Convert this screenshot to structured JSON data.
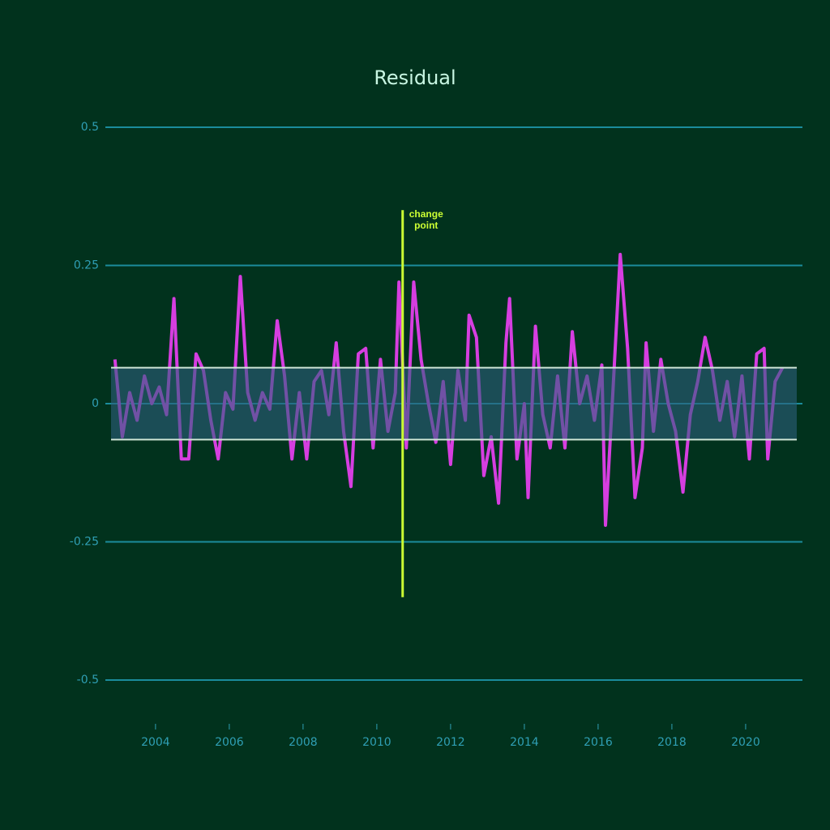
{
  "chart_data": {
    "type": "line",
    "title": "Residual",
    "x": [
      2002.9,
      2003.1,
      2003.3,
      2003.5,
      2003.7,
      2003.9,
      2004.1,
      2004.3,
      2004.5,
      2004.7,
      2004.9,
      2005.1,
      2005.3,
      2005.5,
      2005.7,
      2005.9,
      2006.1,
      2006.3,
      2006.5,
      2006.7,
      2006.9,
      2007.1,
      2007.3,
      2007.5,
      2007.7,
      2007.9,
      2008.1,
      2008.3,
      2008.5,
      2008.7,
      2008.9,
      2009.1,
      2009.3,
      2009.5,
      2009.7,
      2009.9,
      2010.1,
      2010.3,
      2010.5,
      2010.6,
      2010.8,
      2011.0,
      2011.2,
      2011.4,
      2011.6,
      2011.8,
      2012.0,
      2012.2,
      2012.4,
      2012.5,
      2012.7,
      2012.9,
      2013.1,
      2013.3,
      2013.5,
      2013.6,
      2013.8,
      2014.0,
      2014.1,
      2014.3,
      2014.5,
      2014.7,
      2014.9,
      2015.1,
      2015.3,
      2015.5,
      2015.7,
      2015.9,
      2016.1,
      2016.2,
      2016.4,
      2016.6,
      2016.8,
      2017.0,
      2017.2,
      2017.3,
      2017.5,
      2017.7,
      2017.9,
      2018.1,
      2018.3,
      2018.5,
      2018.7,
      2018.9,
      2019.1,
      2019.3,
      2019.5,
      2019.7,
      2019.9,
      2020.1,
      2020.3,
      2020.5,
      2020.6,
      2020.8,
      2021.0
    ],
    "series": [
      {
        "color": "#d63ee0",
        "values": [
          0.08,
          -0.06,
          0.02,
          -0.03,
          0.05,
          0.0,
          0.03,
          -0.02,
          0.19,
          -0.1,
          -0.1,
          0.09,
          0.06,
          -0.03,
          -0.1,
          0.02,
          -0.01,
          0.23,
          0.02,
          -0.03,
          0.02,
          -0.01,
          0.15,
          0.05,
          -0.1,
          0.02,
          -0.1,
          0.04,
          0.06,
          -0.02,
          0.11,
          -0.05,
          -0.15,
          0.09,
          0.1,
          -0.08,
          0.08,
          -0.05,
          0.02,
          0.22,
          -0.08,
          0.22,
          0.08,
          0.0,
          -0.07,
          0.04,
          -0.11,
          0.06,
          -0.03,
          0.16,
          0.12,
          -0.13,
          -0.06,
          -0.18,
          0.11,
          0.19,
          -0.1,
          0.0,
          -0.17,
          0.14,
          -0.02,
          -0.08,
          0.05,
          -0.08,
          0.13,
          0.0,
          0.05,
          -0.03,
          0.07,
          -0.22,
          0.02,
          0.27,
          0.1,
          -0.17,
          -0.08,
          0.11,
          -0.05,
          0.08,
          0.0,
          -0.05,
          -0.16,
          -0.02,
          0.04,
          0.12,
          0.06,
          -0.03,
          0.04,
          -0.06,
          0.05,
          -0.1,
          0.09,
          0.1,
          -0.1,
          0.04,
          0.065
        ]
      }
    ],
    "band": [
      -0.065,
      0.065
    ],
    "change_point": {
      "x": 2010.7,
      "ymin": -0.35,
      "ymax": 0.35,
      "label": "change point"
    },
    "xlim": [
      2002.64,
      2021.54
    ],
    "xticks": [
      2004,
      2006,
      2008,
      2010,
      2012,
      2014,
      2016,
      2018,
      2020
    ],
    "ylim": [
      -0.58,
      0.58
    ],
    "yticks": [
      -0.5,
      -0.25,
      0,
      0.25,
      0.5
    ],
    "grid": true
  }
}
